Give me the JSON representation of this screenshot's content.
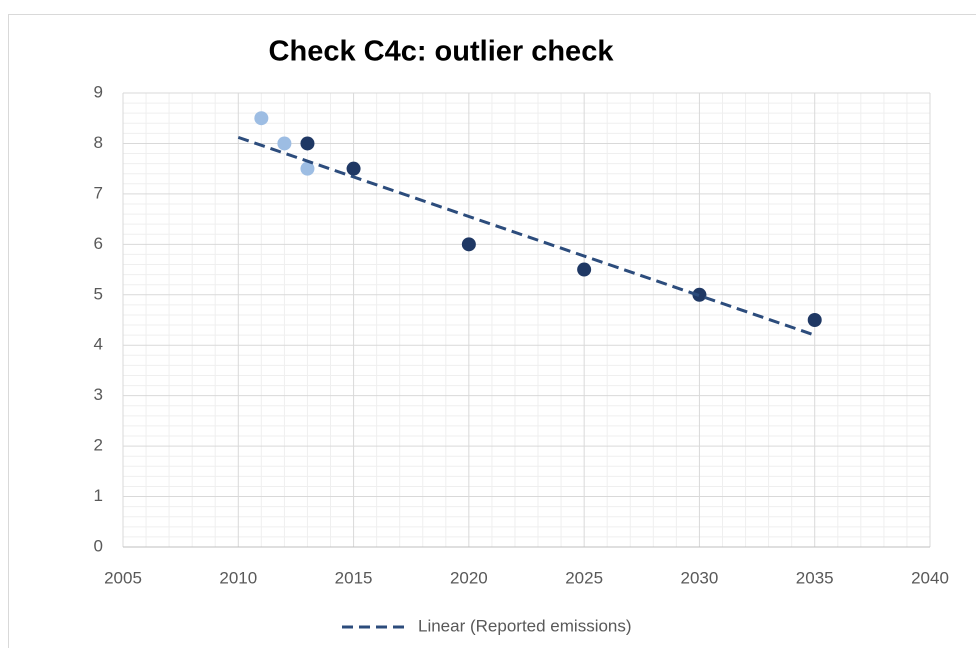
{
  "chart_data": {
    "type": "scatter",
    "title": "Check C4c: outlier check",
    "series": [
      {
        "color": "#9dbde3",
        "x": [
          2011,
          2012,
          2013
        ],
        "values": [
          8.5,
          8,
          7.5
        ]
      },
      {
        "color": "#1f3864",
        "x": [
          2013,
          2015,
          2020,
          2025,
          2030,
          2035
        ],
        "values": [
          8,
          7.5,
          6,
          5.5,
          5,
          4.5
        ]
      },
      {
        "name": "Linear (Reported emissions)",
        "type": "line",
        "dashed": true,
        "color": "#2c4c7c",
        "x": [
          2010,
          2035
        ],
        "values": [
          8.12,
          4.2
        ]
      }
    ],
    "xlim": [
      2005,
      2040
    ],
    "xticks": [
      2005,
      2010,
      2015,
      2020,
      2025,
      2030,
      2035,
      2040
    ],
    "ylim": [
      0,
      9
    ],
    "yticks": [
      0,
      1,
      2,
      3,
      4,
      5,
      6,
      7,
      8,
      9
    ],
    "grid": true,
    "minor_grid": true,
    "legend": "bottom"
  }
}
